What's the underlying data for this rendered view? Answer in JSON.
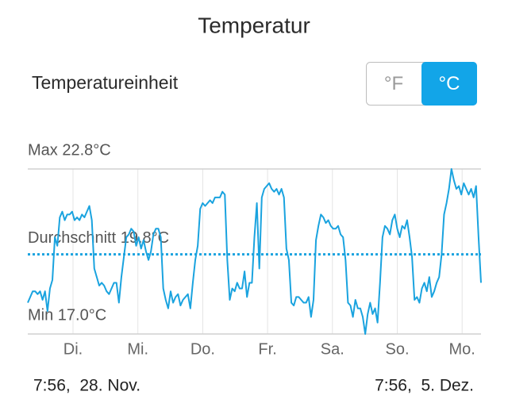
{
  "header": {
    "title": "Temperatur"
  },
  "unit_setting": {
    "label": "Temperatureinheit",
    "options": [
      "°F",
      "°C"
    ],
    "selected": 1
  },
  "chart_data": {
    "type": "line",
    "color": "#1aa3df",
    "ylim": [
      17.0,
      22.8
    ],
    "reference_lines": [
      {
        "label": "Max 22.8°C",
        "value": 22.8,
        "style": "solid"
      },
      {
        "label": "Durchschnitt 19.8°C",
        "value": 19.8,
        "style": "dotted"
      },
      {
        "label": "Min 17.0°C",
        "value": 17.0,
        "style": "solid"
      }
    ],
    "x_labels": [
      "Di.",
      "Mi.",
      "Do.",
      "Fr.",
      "Sa.",
      "So.",
      "Mo."
    ],
    "start_label": "7:56,  28. Nov.",
    "end_label": "7:56,  5. Dez.",
    "values": [
      18.1,
      18.3,
      18.5,
      18.5,
      18.4,
      18.5,
      18.2,
      18.5,
      17.8,
      18.6,
      18.9,
      20.4,
      20.1,
      21.1,
      21.3,
      21.0,
      21.2,
      21.2,
      21.3,
      21.0,
      21.1,
      21.0,
      21.2,
      21.1,
      21.3,
      21.5,
      21.0,
      19.3,
      19.0,
      18.7,
      18.8,
      18.7,
      18.5,
      18.4,
      18.6,
      18.8,
      18.8,
      18.1,
      19.0,
      19.7,
      20.4,
      20.5,
      20.7,
      20.6,
      20.1,
      20.4,
      20.0,
      20.3,
      19.9,
      19.6,
      19.9,
      20.5,
      20.7,
      20.7,
      20.4,
      18.6,
      18.2,
      17.9,
      18.5,
      18.1,
      18.3,
      18.4,
      18.0,
      18.2,
      18.3,
      18.4,
      17.9,
      18.8,
      19.6,
      20.1,
      21.4,
      21.6,
      21.5,
      21.6,
      21.7,
      21.6,
      21.8,
      21.8,
      21.8,
      22.0,
      21.9,
      19.6,
      18.2,
      18.6,
      18.5,
      18.8,
      18.6,
      18.6,
      19.2,
      18.3,
      18.8,
      18.8,
      20.4,
      21.6,
      19.3,
      21.8,
      22.1,
      22.2,
      22.3,
      22.1,
      22.0,
      22.1,
      21.9,
      22.1,
      21.8,
      20.0,
      19.6,
      18.1,
      18.0,
      18.3,
      18.3,
      18.2,
      18.1,
      18.1,
      18.3,
      17.6,
      18.2,
      20.3,
      20.8,
      21.2,
      21.1,
      20.9,
      21.0,
      20.8,
      20.7,
      20.7,
      20.8,
      20.5,
      20.4,
      19.6,
      18.1,
      18.0,
      17.6,
      18.2,
      17.9,
      17.9,
      17.6,
      17.0,
      17.7,
      18.1,
      17.7,
      17.9,
      17.4,
      18.8,
      20.4,
      20.8,
      20.7,
      20.5,
      21.0,
      21.2,
      20.7,
      20.4,
      20.8,
      20.7,
      21.0,
      20.4,
      19.7,
      18.2,
      18.3,
      18.1,
      18.6,
      18.8,
      18.5,
      19.0,
      18.3,
      18.5,
      18.8,
      19.0,
      19.8,
      21.2,
      21.6,
      22.1,
      22.8,
      22.4,
      22.1,
      22.2,
      21.9,
      22.3,
      22.1,
      21.9,
      22.1,
      21.8,
      22.2,
      20.4,
      18.8
    ]
  }
}
